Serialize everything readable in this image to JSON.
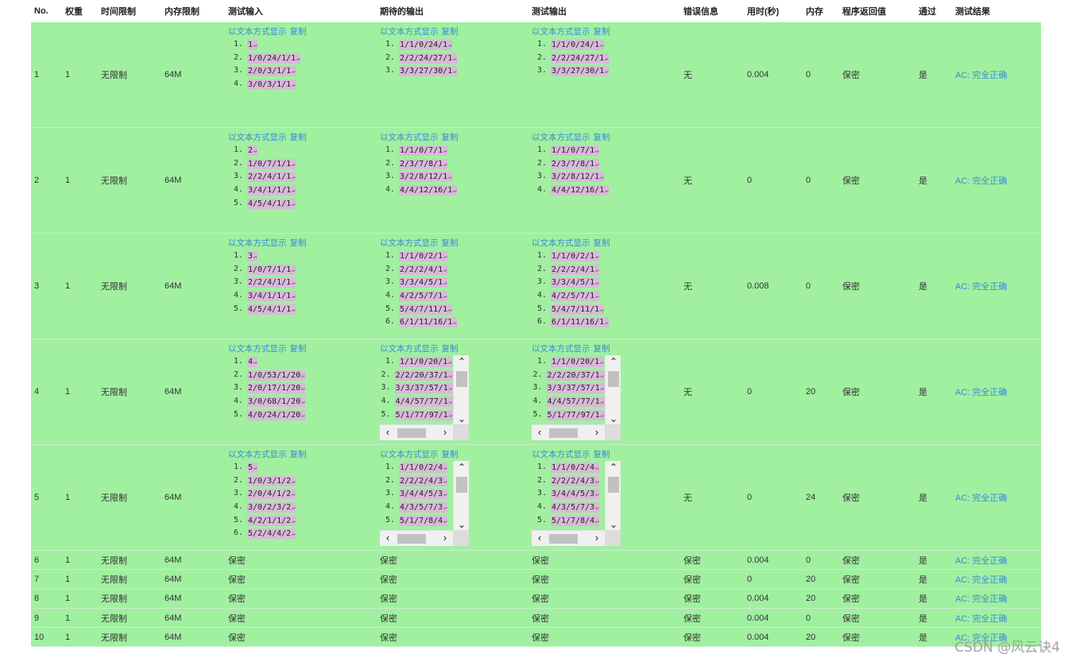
{
  "headers": [
    "No.",
    "权重",
    "时间限制",
    "内存限制",
    "测试输入",
    "期待的输出",
    "测试输出",
    "错误信息",
    "用时(秒)",
    "内存",
    "程序返回值",
    "通过",
    "测试结果"
  ],
  "links": {
    "show_text": "以文本方式显示",
    "copy": "复制"
  },
  "rows": [
    {
      "no": "1",
      "weight": "1",
      "time_limit": "无限制",
      "mem_limit": "64M",
      "input": [
        "1",
        "1/0/24/1/1",
        "2/0/3/1/1",
        "3/0/3/1/1"
      ],
      "expected": [
        "1/1/0/24/1",
        "2/2/24/27/1",
        "3/3/27/30/1"
      ],
      "output": [
        "1/1/0/24/1",
        "2/2/24/27/1",
        "3/3/27/30/1"
      ],
      "expected_scroll": false,
      "output_scroll": false,
      "error": "无",
      "time": "0.004",
      "memory": "0",
      "ret": "保密",
      "pass": "是",
      "result": "AC: 完全正确"
    },
    {
      "no": "2",
      "weight": "1",
      "time_limit": "无限制",
      "mem_limit": "64M",
      "input": [
        "2",
        "1/0/7/1/1",
        "2/2/4/1/1",
        "3/4/1/1/1",
        "4/5/4/1/1"
      ],
      "expected": [
        "1/1/0/7/1",
        "2/3/7/8/1",
        "3/2/8/12/1",
        "4/4/12/16/1"
      ],
      "output": [
        "1/1/0/7/1",
        "2/3/7/8/1",
        "3/2/8/12/1",
        "4/4/12/16/1"
      ],
      "expected_scroll": false,
      "output_scroll": false,
      "error": "无",
      "time": "0",
      "memory": "0",
      "ret": "保密",
      "pass": "是",
      "result": "AC: 完全正确"
    },
    {
      "no": "3",
      "weight": "1",
      "time_limit": "无限制",
      "mem_limit": "64M",
      "input": [
        "3",
        "1/0/7/1/1",
        "2/2/4/1/1",
        "3/4/1/1/1",
        "4/5/4/1/1"
      ],
      "expected": [
        "1/1/0/2/1",
        "2/2/2/4/1",
        "3/3/4/5/1",
        "4/2/5/7/1",
        "5/4/7/11/1",
        "6/1/11/16/1"
      ],
      "output": [
        "1/1/0/2/1",
        "2/2/2/4/1",
        "3/3/4/5/1",
        "4/2/5/7/1",
        "5/4/7/11/1",
        "6/1/11/16/1"
      ],
      "expected_scroll": false,
      "output_scroll": false,
      "error": "无",
      "time": "0.008",
      "memory": "0",
      "ret": "保密",
      "pass": "是",
      "result": "AC: 完全正确"
    },
    {
      "no": "4",
      "weight": "1",
      "time_limit": "无限制",
      "mem_limit": "64M",
      "input": [
        "4",
        "1/0/53/1/20",
        "2/0/17/1/20",
        "3/0/68/1/20",
        "4/0/24/1/20"
      ],
      "expected": [
        "1/1/0/20/1",
        "2/2/20/37/1",
        "3/3/37/57/1",
        "4/4/57/77/1",
        "5/1/77/97/1"
      ],
      "output": [
        "1/1/0/20/1",
        "2/2/20/37/1",
        "3/3/37/57/1",
        "4/4/57/77/1",
        "5/1/77/97/1"
      ],
      "expected_scroll": true,
      "output_scroll": true,
      "error": "无",
      "time": "0",
      "memory": "20",
      "ret": "保密",
      "pass": "是",
      "result": "AC: 完全正确"
    },
    {
      "no": "5",
      "weight": "1",
      "time_limit": "无限制",
      "mem_limit": "64M",
      "input": [
        "5",
        "1/0/3/1/2",
        "2/0/4/1/2",
        "3/0/2/3/2",
        "4/2/1/1/2",
        "5/2/4/4/2"
      ],
      "expected": [
        "1/1/0/2/4",
        "2/2/2/4/3",
        "3/4/4/5/3",
        "4/3/5/7/3",
        "5/1/7/8/4"
      ],
      "output": [
        "1/1/0/2/4",
        "2/2/2/4/3",
        "3/4/4/5/3",
        "4/3/5/7/3",
        "5/1/7/8/4"
      ],
      "expected_scroll": true,
      "output_scroll": true,
      "error": "无",
      "time": "0",
      "memory": "24",
      "ret": "保密",
      "pass": "是",
      "result": "AC: 完全正确"
    }
  ],
  "secret_rows": [
    {
      "no": "6",
      "weight": "1",
      "time_limit": "无限制",
      "mem_limit": "64M",
      "input": "保密",
      "expected": "保密",
      "output": "保密",
      "error": "保密",
      "time": "0.004",
      "memory": "0",
      "ret": "保密",
      "pass": "是",
      "result": "AC: 完全正确"
    },
    {
      "no": "7",
      "weight": "1",
      "time_limit": "无限制",
      "mem_limit": "64M",
      "input": "保密",
      "expected": "保密",
      "output": "保密",
      "error": "保密",
      "time": "0",
      "memory": "20",
      "ret": "保密",
      "pass": "是",
      "result": "AC: 完全正确"
    },
    {
      "no": "8",
      "weight": "1",
      "time_limit": "无限制",
      "mem_limit": "64M",
      "input": "保密",
      "expected": "保密",
      "output": "保密",
      "error": "保密",
      "time": "0.004",
      "memory": "20",
      "ret": "保密",
      "pass": "是",
      "result": "AC: 完全正确"
    },
    {
      "no": "9",
      "weight": "1",
      "time_limit": "无限制",
      "mem_limit": "64M",
      "input": "保密",
      "expected": "保密",
      "output": "保密",
      "error": "保密",
      "time": "0.004",
      "memory": "0",
      "ret": "保密",
      "pass": "是",
      "result": "AC: 完全正确"
    },
    {
      "no": "10",
      "weight": "1",
      "time_limit": "无限制",
      "mem_limit": "64M",
      "input": "保密",
      "expected": "保密",
      "output": "保密",
      "error": "保密",
      "time": "0.004",
      "memory": "20",
      "ret": "保密",
      "pass": "是",
      "result": "AC: 完全正确"
    }
  ],
  "watermark": "CSDN @风云诀4",
  "colors": {
    "row_bg": "#a0f0a0",
    "link": "#3a8bd4",
    "code_highlight": "#d8b9d8"
  }
}
